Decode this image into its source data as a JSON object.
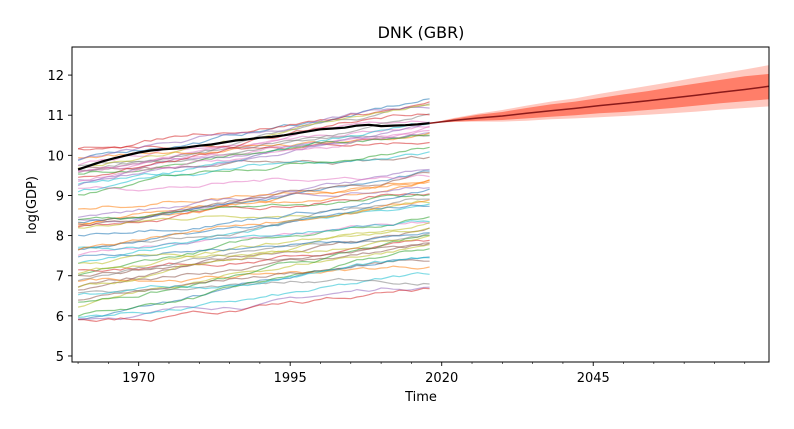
{
  "chart_data": {
    "type": "line",
    "title": "DNK (GBR)",
    "xlabel": "Time",
    "ylabel": "log(GDP)",
    "xlim": [
      1959,
      2074
    ],
    "ylim": [
      4.85,
      12.7
    ],
    "xticks": [
      1970,
      1995,
      2020,
      2045
    ],
    "yticks": [
      5,
      6,
      7,
      8,
      9,
      10,
      11,
      12
    ],
    "x_minor_step": 5,
    "grid": false,
    "historical_range": [
      1960,
      2018
    ],
    "background_series_count": 60,
    "background_series_note": "many thin multicolored lines of other countries' log GDP, 1960-2018, spread between ~5.3 and ~11.5",
    "series": [
      {
        "name": "DNK",
        "color": "#000000",
        "x": [
          1960,
          1962,
          1964,
          1966,
          1968,
          1970,
          1972,
          1974,
          1976,
          1978,
          1980,
          1982,
          1984,
          1986,
          1988,
          1990,
          1992,
          1994,
          1996,
          1998,
          2000,
          2002,
          2004,
          2006,
          2008,
          2010,
          2012,
          2014,
          2016,
          2018
        ],
        "values": [
          9.65,
          9.75,
          9.85,
          9.93,
          10.0,
          10.07,
          10.12,
          10.15,
          10.17,
          10.2,
          10.24,
          10.27,
          10.32,
          10.37,
          10.4,
          10.44,
          10.46,
          10.5,
          10.55,
          10.6,
          10.65,
          10.67,
          10.69,
          10.74,
          10.76,
          10.73,
          10.74,
          10.75,
          10.77,
          10.8
        ]
      }
    ],
    "forecast": {
      "name": "forecast",
      "color": "#8b1a1a",
      "band_color": "#ff4d2e",
      "x": [
        2018,
        2022,
        2026,
        2030,
        2034,
        2038,
        2042,
        2046,
        2050,
        2054,
        2058,
        2062,
        2066,
        2070,
        2074
      ],
      "median": [
        10.8,
        10.87,
        10.93,
        10.98,
        11.05,
        11.11,
        11.17,
        11.24,
        11.3,
        11.36,
        11.43,
        11.5,
        11.57,
        11.64,
        11.72
      ],
      "inner_band": [
        [
          10.8,
          10.8
        ],
        [
          10.84,
          10.91
        ],
        [
          10.86,
          11.01
        ],
        [
          10.88,
          11.08
        ],
        [
          10.92,
          11.18
        ],
        [
          10.96,
          11.27
        ],
        [
          11.0,
          11.34
        ],
        [
          11.05,
          11.43
        ],
        [
          11.08,
          11.52
        ],
        [
          11.13,
          11.6
        ],
        [
          11.18,
          11.7
        ],
        [
          11.24,
          11.79
        ],
        [
          11.3,
          11.88
        ],
        [
          11.35,
          11.97
        ],
        [
          11.4,
          12.03
        ]
      ],
      "outer_band": [
        [
          10.8,
          10.8
        ],
        [
          10.83,
          10.93
        ],
        [
          10.84,
          11.04
        ],
        [
          10.84,
          11.13
        ],
        [
          10.86,
          11.24
        ],
        [
          10.9,
          11.34
        ],
        [
          10.92,
          11.42
        ],
        [
          10.95,
          11.53
        ],
        [
          10.98,
          11.63
        ],
        [
          11.01,
          11.73
        ],
        [
          11.05,
          11.83
        ],
        [
          11.09,
          11.94
        ],
        [
          11.14,
          12.04
        ],
        [
          11.18,
          12.14
        ],
        [
          11.22,
          12.25
        ]
      ]
    }
  }
}
